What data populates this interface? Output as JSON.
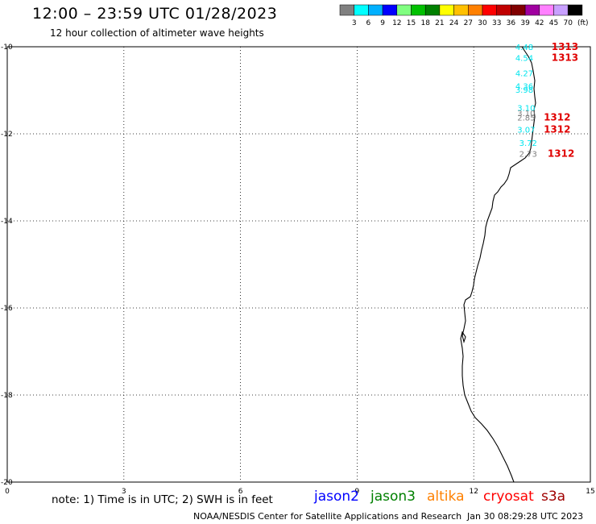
{
  "header": {
    "title": "12:00 – 23:59 UTC 01/28/2023",
    "subtitle": "12 hour collection of altimeter wave heights"
  },
  "colorbar": {
    "unit_label": "(ft)",
    "ticks": [
      "3",
      "6",
      "9",
      "12",
      "15",
      "18",
      "21",
      "24",
      "27",
      "30",
      "33",
      "36",
      "39",
      "42",
      "45",
      "70"
    ],
    "colors": [
      "#808080",
      "#00ffff",
      "#00b0ff",
      "#0000ff",
      "#80ff80",
      "#00c000",
      "#008000",
      "#ffff00",
      "#ffc000",
      "#ff8000",
      "#ff0000",
      "#c00000",
      "#800000",
      "#a000a0",
      "#ff80ff",
      "#c8a0ff",
      "#000000"
    ]
  },
  "map": {
    "lon_range": [
      0,
      15
    ],
    "lat_range": [
      -20,
      -10
    ],
    "x_ticks": [
      "0",
      "3",
      "6",
      "9",
      "12",
      "15"
    ],
    "y_ticks": [
      "-10",
      "-12",
      "-14",
      "-16",
      "-18",
      "-20"
    ],
    "grid": true,
    "coastline_color": "#000000",
    "wave_labels": [
      {
        "text": "4.48",
        "color": "#00e5ee",
        "lon": 13.3,
        "lat": -10.0
      },
      {
        "text": "4.54",
        "color": "#00e5ee",
        "lon": 13.3,
        "lat": -10.25
      },
      {
        "text": "4.27",
        "color": "#00e5ee",
        "lon": 13.3,
        "lat": -10.6
      },
      {
        "text": "4.36",
        "color": "#00e5ee",
        "lon": 13.3,
        "lat": -10.9
      },
      {
        "text": "3.98",
        "color": "#00e5ee",
        "lon": 13.3,
        "lat": -10.98
      },
      {
        "text": "3.10",
        "color": "#00e5ee",
        "lon": 13.35,
        "lat": -11.4
      },
      {
        "text": "3.10",
        "color": "#808080",
        "lon": 13.35,
        "lat": -11.52
      },
      {
        "text": "2.85",
        "color": "#808080",
        "lon": 13.35,
        "lat": -11.62
      },
      {
        "text": "3.07",
        "color": "#00e5ee",
        "lon": 13.35,
        "lat": -11.9
      },
      {
        "text": "3.72",
        "color": "#00e5ee",
        "lon": 13.4,
        "lat": -12.2
      },
      {
        "text": "2.73",
        "color": "#808080",
        "lon": 13.4,
        "lat": -12.45
      }
    ],
    "pass_labels": [
      {
        "text": "1313",
        "color": "#e00000",
        "lon": 14.0,
        "lat": -10.0
      },
      {
        "text": "1313",
        "color": "#e00000",
        "lon": 14.0,
        "lat": -10.25
      },
      {
        "text": "1312",
        "color": "#e00000",
        "lon": 13.8,
        "lat": -11.62
      },
      {
        "text": "1312",
        "color": "#e00000",
        "lon": 13.8,
        "lat": -11.9
      },
      {
        "text": "1312",
        "color": "#e00000",
        "lon": 13.9,
        "lat": -12.45
      }
    ]
  },
  "footer": {
    "note": "note:  1)  Time is in UTC;  2)  SWH is in feet",
    "satellites": [
      {
        "name": "jason2",
        "color": "#0000ff"
      },
      {
        "name": "jason3",
        "color": "#008000"
      },
      {
        "name": "altika",
        "color": "#ff8000"
      },
      {
        "name": "cryosat",
        "color": "#ff0000"
      },
      {
        "name": "s3a",
        "color": "#a00000"
      }
    ],
    "credit": "NOAA/NESDIS Center for Satellite Applications and Research",
    "timestamp": "Jan 30 08:29:28 UTC 2023"
  }
}
